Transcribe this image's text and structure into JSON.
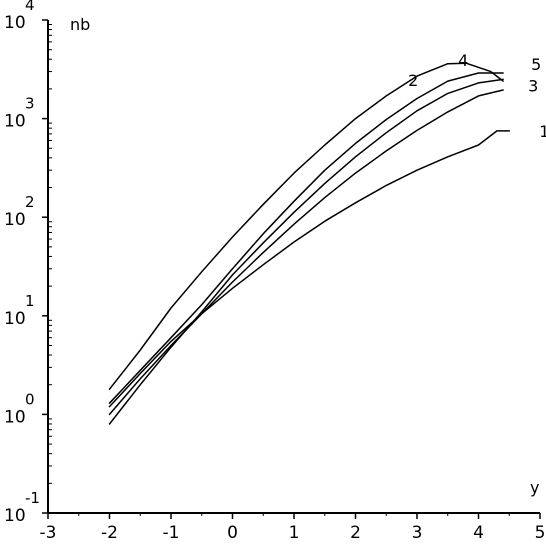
{
  "chart_data": {
    "type": "line",
    "title": "",
    "xlabel": "y",
    "ylabel": "nb",
    "yscale": "log",
    "xlim": [
      -3,
      5
    ],
    "ylim": [
      0.1,
      10000
    ],
    "grid": false,
    "legend": "none",
    "x_ticks": [
      "-3",
      "-2",
      "-1",
      "0",
      "1",
      "2",
      "3",
      "4",
      "5"
    ],
    "y_ticks": [
      {
        "base": "10",
        "exp": "-1",
        "value": 0.1
      },
      {
        "base": "10",
        "exp": "0",
        "value": 1
      },
      {
        "base": "10",
        "exp": "1",
        "value": 10
      },
      {
        "base": "10",
        "exp": "2",
        "value": 100
      },
      {
        "base": "10",
        "exp": "3",
        "value": 1000
      },
      {
        "base": "10",
        "exp": "4",
        "value": 10000
      }
    ],
    "series": [
      {
        "name": "1",
        "x": [
          -2.0,
          -1.5,
          -1.0,
          -0.5,
          0.0,
          0.5,
          1.0,
          1.5,
          2.0,
          2.5,
          3.0,
          3.5,
          4.0,
          4.3,
          4.5
        ],
        "y": [
          1.2,
          2.6,
          5.5,
          10.5,
          19,
          33,
          56,
          91,
          140,
          210,
          300,
          410,
          540,
          750,
          750
        ]
      },
      {
        "name": "2",
        "x": [
          -2.0,
          -1.5,
          -1.0,
          -0.5,
          0.0,
          0.5,
          1.0,
          1.5,
          2.0,
          2.5,
          3.0,
          3.5,
          4.0,
          4.4
        ],
        "y": [
          1.0,
          2.3,
          5.0,
          10.5,
          22,
          44,
          85,
          158,
          280,
          470,
          760,
          1170,
          1700,
          1950
        ]
      },
      {
        "name": "3",
        "x": [
          -2.0,
          -1.5,
          -1.0,
          -0.5,
          0.0,
          0.5,
          1.0,
          1.5,
          2.0,
          2.5,
          3.0,
          3.5,
          4.0,
          4.4
        ],
        "y": [
          0.8,
          2.0,
          4.8,
          11,
          26,
          55,
          112,
          220,
          410,
          720,
          1200,
          1800,
          2300,
          2500
        ]
      },
      {
        "name": "4",
        "x": [
          -2.0,
          -1.5,
          -1.0,
          -0.5,
          0.0,
          0.5,
          1.0,
          1.5,
          2.0,
          2.5,
          3.0,
          3.5,
          3.8,
          4.2,
          4.4
        ],
        "y": [
          1.8,
          4.5,
          12,
          28,
          63,
          135,
          280,
          540,
          1000,
          1700,
          2700,
          3600,
          3650,
          3000,
          2400
        ]
      },
      {
        "name": "5",
        "x": [
          -2.0,
          -1.5,
          -1.0,
          -0.5,
          0.0,
          0.5,
          1.0,
          1.5,
          2.0,
          2.5,
          3.0,
          3.5,
          4.0,
          4.4
        ],
        "y": [
          1.3,
          2.8,
          6.0,
          13,
          30,
          68,
          145,
          300,
          560,
          980,
          1600,
          2400,
          2900,
          2900
        ]
      }
    ]
  }
}
